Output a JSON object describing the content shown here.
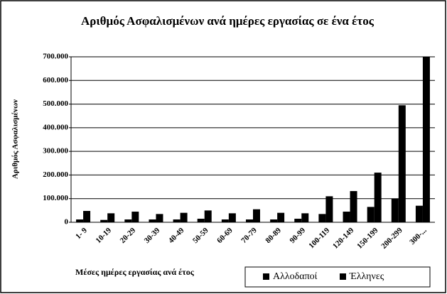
{
  "chart_data": {
    "type": "bar",
    "title": "Αριθμός Ασφαλισμένων ανά ημέρες εργασίας σε ένα έτος",
    "x_label": "Μέσες ημέρες εργασίας ανά έτος",
    "y_label": "Αριθμός Ασφαλισμένων",
    "categories": [
      "1- 9",
      "10-19",
      "20-29",
      "30-39",
      "40-49",
      "50-59",
      "60-69",
      "70-79",
      "80-89",
      "90-99",
      "100-119",
      "120-149",
      "150-199",
      "200-299",
      "300-..."
    ],
    "series": [
      {
        "name": "Αλλοδαποί",
        "color": "#000000",
        "values": [
          12000,
          10000,
          12000,
          12000,
          12000,
          15000,
          12000,
          12000,
          12000,
          15000,
          35000,
          45000,
          65000,
          100000,
          70000
        ]
      },
      {
        "name": "Έλληνες",
        "color": "#000000",
        "values": [
          48000,
          38000,
          45000,
          35000,
          40000,
          50000,
          38000,
          55000,
          40000,
          38000,
          110000,
          132000,
          210000,
          495000,
          700000
        ]
      }
    ],
    "ylim": [
      0,
      700000
    ],
    "yticks": [
      0,
      {
        "value": 100000,
        "label": "100.000"
      },
      {
        "value": 200000,
        "label": "200.000"
      },
      {
        "value": 300000,
        "label": "300.000"
      },
      {
        "value": 400000,
        "label": "400.000"
      },
      {
        "value": 500000,
        "label": "500.000"
      },
      {
        "value": 600000,
        "label": "600.000"
      },
      {
        "value": 700000,
        "label": "700.000"
      }
    ],
    "grid": true,
    "legend": "bottom-right"
  }
}
